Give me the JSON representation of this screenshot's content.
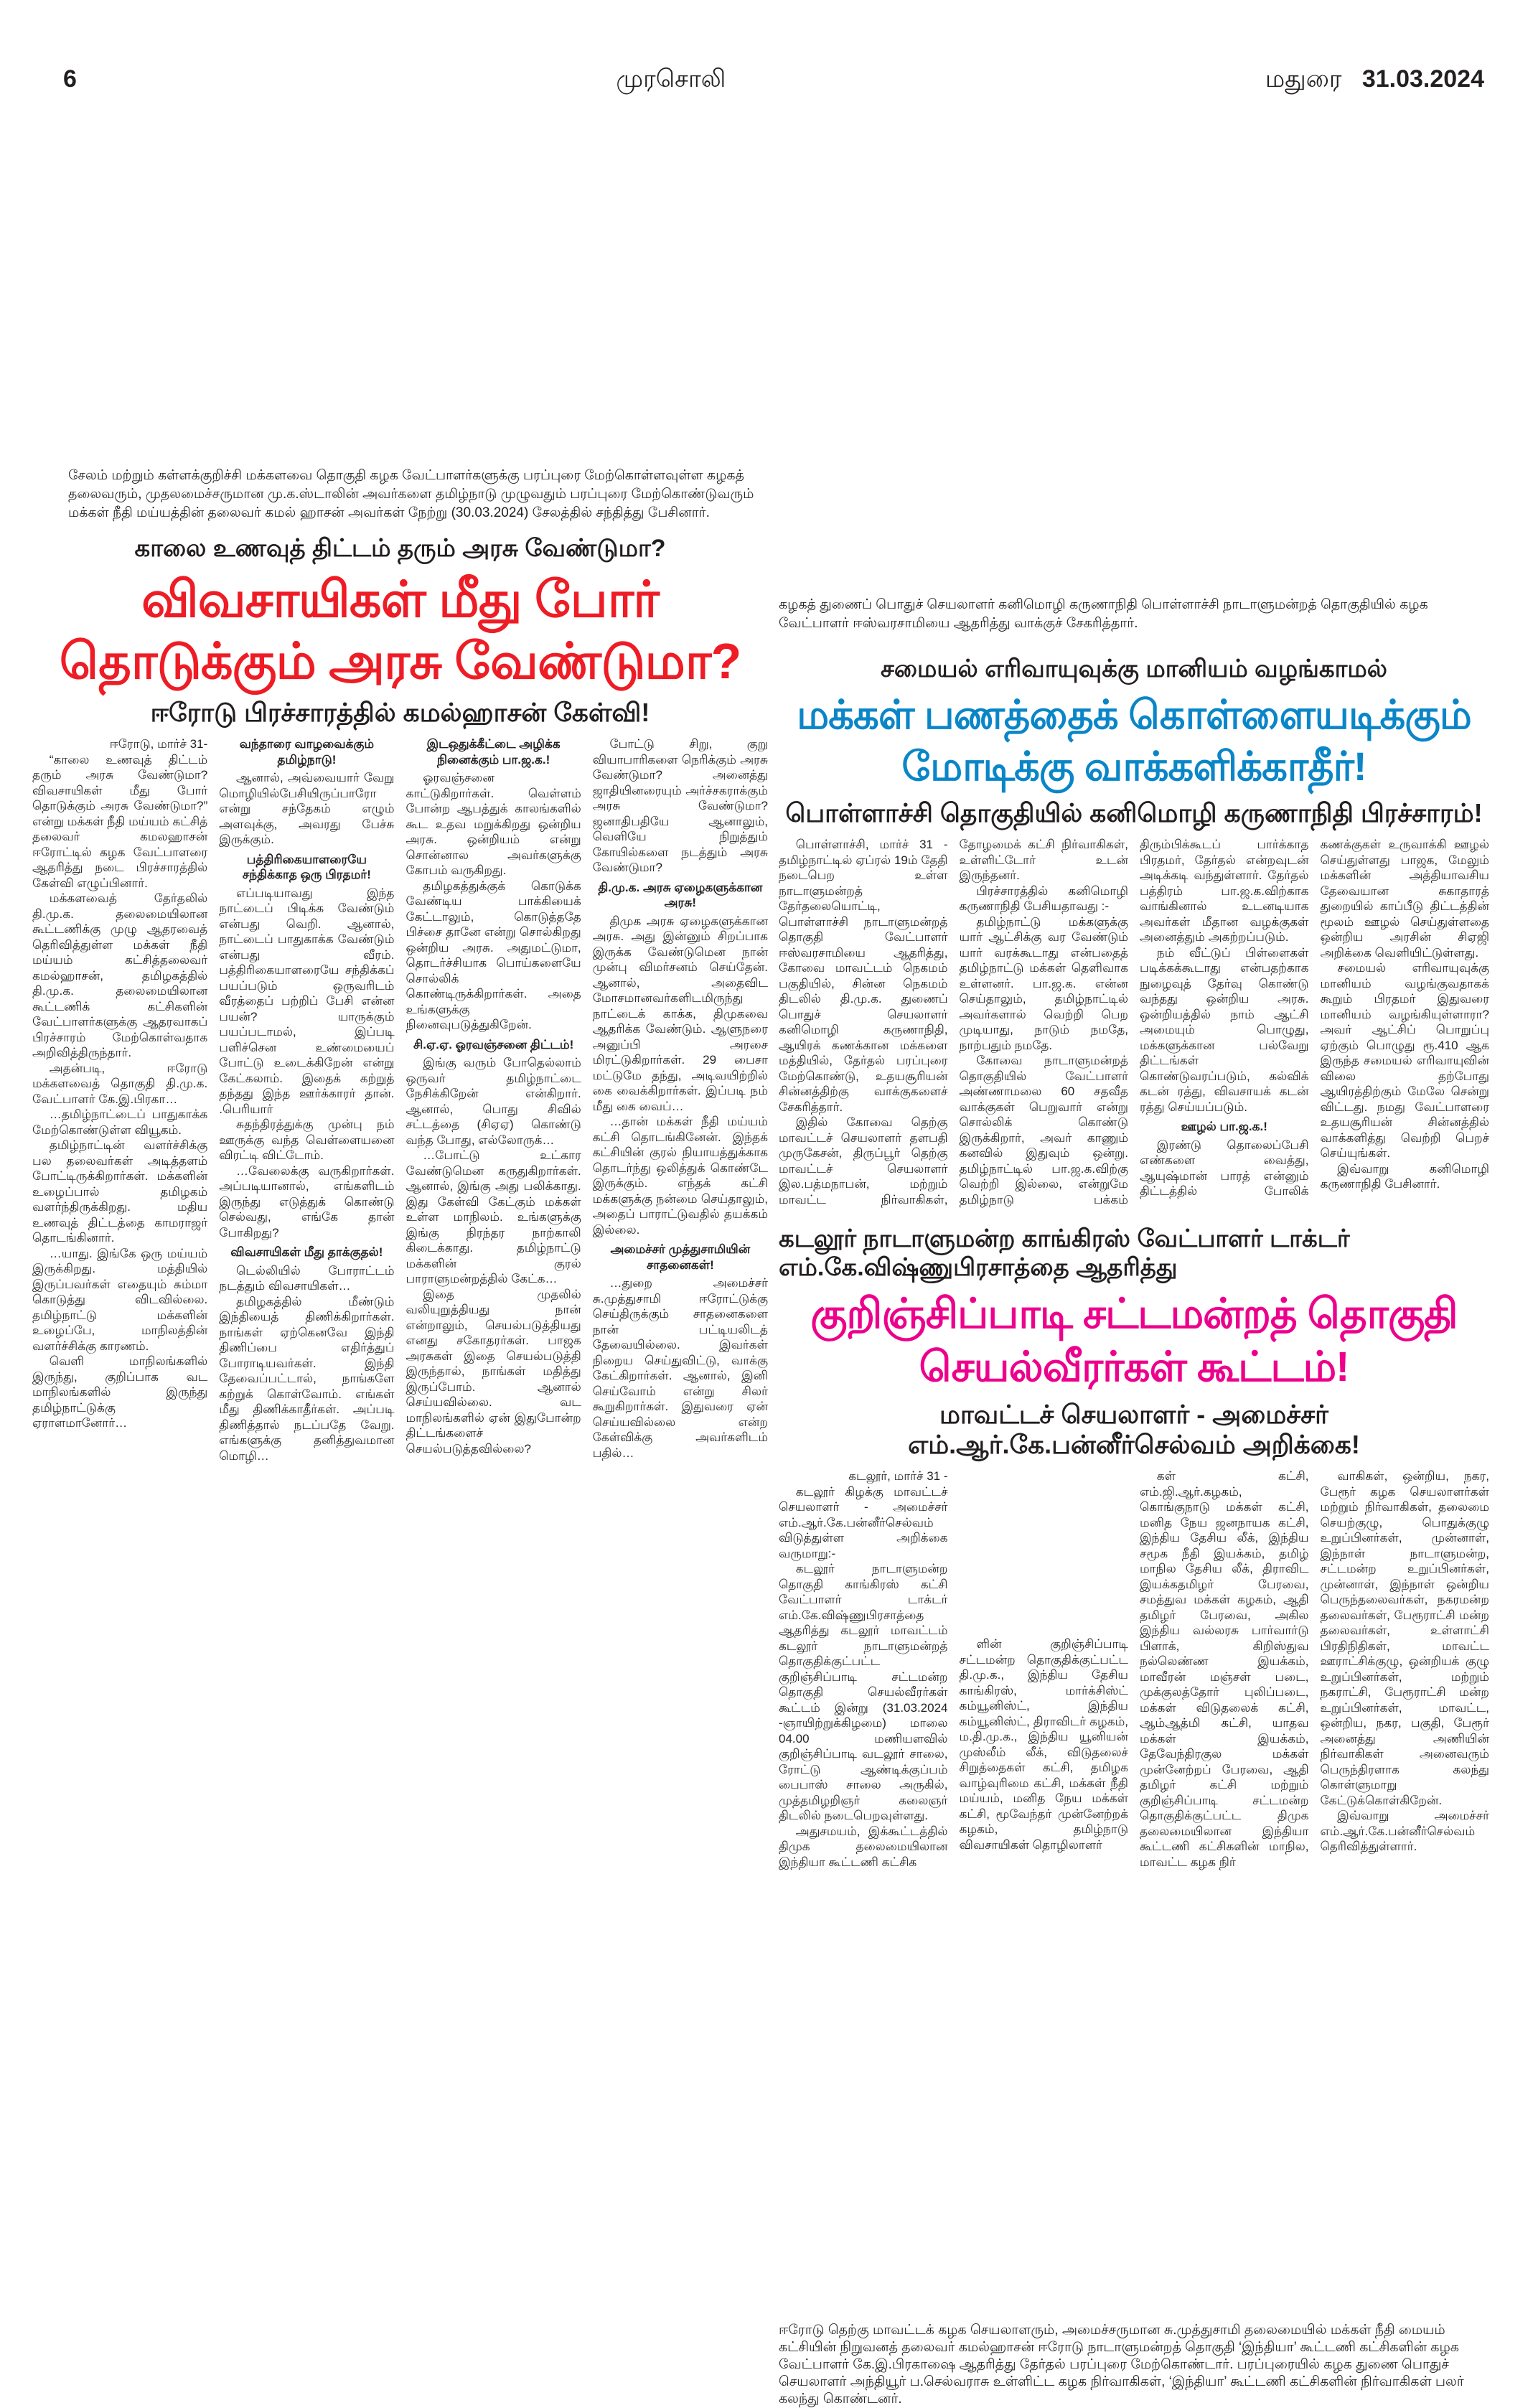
{
  "header": {
    "page_number": "6",
    "masthead": "முரசொலி",
    "edition": "மதுரை",
    "date": "31.03.2024"
  },
  "colors": {
    "red_headline": "#ee1c25",
    "blue_headline": "#0a86c8",
    "pink_headline": "#ec008c",
    "text": "#231f20"
  },
  "left_photo_caption": "சேலம் மற்றும் கள்ளக்குறிச்சி மக்களவை தொகுதி கழக வேட்பாளர்களுக்கு பரப்புரை மேற்கொள்ளவுள்ள கழகத் தலைவரும், முதலமைச்சருமான மு.க.ஸ்டாலின் அவர்களை தமிழ்நாடு முழுவதும் பரப்புரை மேற்கொண்டுவரும் மக்கள் நீதி மய்யத்தின் தலைவர் கமல் ஹாசன் அவர்கள் நேற்று (30.03.2024) சேலத்தில் சந்தித்து பேசினார்.",
  "kamal_article": {
    "kicker": "காலை உணவுத் திட்டம் தரும் அரசு வேண்டுமா?",
    "headline": "விவசாயிகள் மீது போர் தொடுக்கும் அரசு வேண்டுமா?",
    "subhead": "ஈரோடு பிரச்சாரத்தில் கமல்ஹாசன் கேள்வி!",
    "body": [
      {
        "type": "dateline",
        "text": "ஈரோடு, மார்ச் 31-"
      },
      {
        "type": "p",
        "text": "“காலை உணவுத் திட்டம் தரும் அரசு வேண்டுமா? விவசாயிகள் மீது போர் தொடுக்கும் அரசு வேண்டுமா?” என்று மக்கள் நீதி மய்யம் கட்சித் தலைவர் கமலஹாசன் ஈரோட்டில் கழக வேட்பாளரை ஆதரித்து நடை பிரச்சாரத்தில் கேள்வி எழுப்பினார்."
      },
      {
        "type": "p",
        "text": "மக்களவைத் தேர்தலில் தி.மு.க. தலைமையிலான கூட்டணிக்கு முழு ஆதரவைத் தெரிவித்துள்ள மக்கள் நீதி மய்யம் கட்சித்தலைவர் கமல்ஹாசன், தமிழகத்தில் தி.மு.க. தலைமையிலான கூட்டணிக் கட்சிகளின் வேட்பாளர்களுக்கு ஆதரவாகப் பிரச்சாரம் மேற்கொள்வதாக அறிவித்திருந்தார்."
      },
      {
        "type": "p",
        "text": "அதன்படி, ஈரோடு மக்களவைத் தொகுதி தி.மு.க. வேட்பாளர் கே.இ.பிரகா…"
      },
      {
        "type": "p",
        "text": "…தமிழ்நாட்டைப் பாதுகாக்க மேற்கொண்டுள்ள வியூகம்."
      },
      {
        "type": "p",
        "text": "தமிழ்நாட்டின் வளர்ச்சிக்கு பல தலைவர்கள் அடித்தளம் போட்டிருக்கிறார்கள். மக்களின் உழைப்பால் தமிழகம் வளர்ந்திருக்கிறது. மதிய உணவுத் திட்டத்தை காமராஜர் தொடங்கினார்."
      },
      {
        "type": "p",
        "text": "…யாது. இங்கே ஒரு மய்யம் இருக்கிறது. மத்தியில் இருப்பவர்கள் எதையும் சும்மா கொடுத்து விடவில்லை. தமிழ்நாட்டு மக்களின் உழைப்பே, மாநிலத்தின் வளர்ச்சிக்கு காரணம்."
      },
      {
        "type": "p",
        "text": "வெளி மாநிலங்களில் இருந்து, குறிப்பாக வட மாநிலங்களில் இருந்து தமிழ்நாட்டுக்கு ஏராளமானோர்…"
      },
      {
        "type": "h",
        "text": "வந்தாரை வாழவைக்கும் தமிழ்நாடு!"
      },
      {
        "type": "p",
        "text": "ஆனால், அவ்வையார் வேறு மொழியில்பேசியிருப்பாரோ என்று சந்தேகம் எழும் அளவுக்கு, அவரது பேச்சு இருக்கும்."
      },
      {
        "type": "h",
        "text": "பத்திரிகையாளரையே சந்திக்காத ஒரு பிரதமர்!"
      },
      {
        "type": "p",
        "text": "எப்படியாவது இந்த நாட்டைப் பிடிக்க வேண்டும் என்பது வெறி. ஆனால், நாட்டைப் பாதுகாக்க வேண்டும் என்பது வீரம். பத்திரிகையாளரையே சந்திக்கப் பயப்படும் ஒருவரிடம் வீரத்தைப் பற்றிப் பேசி என்ன பயன்? யாருக்கும் பயப்படாமல், இப்படி பளிச்சென உண்மையைப் போட்டு உடைக்கிறேன் என்று கேட்கலாம். இதைக் கற்றுத் தந்தது இந்த ஊர்க்காரர் தான். .பெரியார்"
      },
      {
        "type": "p",
        "text": "சுதந்திரத்துக்கு முன்பு நம் ஊருக்கு வந்த வெள்ளையனை விரட்டி விட்டோம்."
      },
      {
        "type": "p",
        "text": "…வேலைக்கு வருகிறார்கள். அப்படியானால், எங்களிடம் இருந்து எடுத்துக் கொண்டு செல்வது, எங்கே தான் போகிறது?"
      },
      {
        "type": "h",
        "text": "விவசாயிகள் மீது தாக்குதல்!"
      },
      {
        "type": "p",
        "text": "டெல்லியில் போராட்டம் நடத்தும் விவசாயிகள்…"
      },
      {
        "type": "p",
        "text": "தமிழகத்தில் மீண்டும் இந்தியைத் திணிக்கிறார்கள். நாங்கள் ஏற்கெனவே இந்தி திணிப்பை எதிர்த்துப் போராடியவர்கள். இந்தி தேவைப்பட்டால், நாங்களே கற்றுக் கொள்வோம். எங்கள் மீது திணிக்காதீர்கள். அப்படி திணித்தால் நடப்பதே வேறு. எங்களுக்கு தனித்துவமான மொழி…"
      },
      {
        "type": "h",
        "text": "இடஒதுக்கீட்டை அழிக்க நினைக்கும் பா.ஜ.க.!"
      },
      {
        "type": "p",
        "text": "ஓரவஞ்சனை காட்டுகிறார்கள். வெள்ளம் போன்ற ஆபத்துக் காலங்களில் கூட உதவ மறுக்கிறது ஒன்றிய அரசு. ஒன்றியம் என்று சொன்னால அவர்களுக்கு கோபம் வருகிறது."
      },
      {
        "type": "p",
        "text": "தமிழகத்துக்குக் கொடுக்க வேண்டிய பாக்கியைக் கேட்டாலும், கொடுத்ததே பிச்சை தானே என்று சொல்கிறது ஒன்றிய அரசு. அதுமட்டுமா, தொடர்ச்சியாக பொய்களையே சொல்லிக் கொண்டிருக்கிறார்கள். அதை உங்களுக்கு நினைவுபடுத்துகிறேன்."
      },
      {
        "type": "h",
        "text": "சி.ஏ.ஏ. ஓரவஞ்சனை திட்டம்!"
      },
      {
        "type": "p",
        "text": "இங்கு வரும் போதெல்லாம் ஒருவர் தமிழ்நாட்டை நேசிக்கிறேன் என்கிறார். ஆனால், பொது சிவில் சட்டத்தை (சிஏஏ) கொண்டு வந்த போது, எல்லோருக்…"
      },
      {
        "type": "p",
        "text": "…போட்டு உட்கார வேண்டுமென கருதுகிறார்கள். ஆனால், இங்கு அது பலிக்காது. இது கேள்வி கேட்கும் மக்கள் உள்ள மாநிலம். உங்களுக்கு இங்கு நிரந்தர நாற்காலி கிடைக்காது. தமிழ்நாட்டு மக்களின் குரல் பாராளுமன்றத்தில் கேட்க…"
      },
      {
        "type": "p",
        "text": "இதை முதலில் வலியுறுத்தியது நான் என்றாலும், செயல்படுத்தியது எனது சகோதரர்கள். பாஜக அரசுகள் இதை செயல்படுத்தி இருந்தால், நாங்கள் மதித்து இருப்போம். ஆனால் செய்யவில்லை. வட மாநிலங்களில் ஏன் இதுபோன்ற திட்டங்களைச் செயல்படுத்தவில்லை?"
      },
      {
        "type": "p",
        "text": "போட்டு சிறு, குறு வியாபாரிகளை நெரிக்கும் அரசு வேண்டுமா? அனைத்து ஜாதியினரையும் அர்ச்சகராக்கும் அரசு வேண்டுமா? ஜனாதிபதியே ஆனாலும், வெளியே நிறுத்தும் கோயில்களை நடத்தும் அரசு வேண்டுமா?"
      },
      {
        "type": "h",
        "text": "தி.மு.க. அரசு ஏழைகளுக்கான அரசு!"
      },
      {
        "type": "p",
        "text": "திமுக அரசு ஏழைகளுக்கான அரசு. அது இன்னும் சிறப்பாக இருக்க வேண்டுமென நான் முன்பு விமர்சனம் செய்தேன். ஆனால், அதைவிட மோசமானவர்களிடமிருந்து நாட்டைக் காக்க, திமுகவை ஆதரிக்க வேண்டும். ஆளுநரை அனுப்பி அரசை மிரட்டுகிறார்கள். 29 பைசா மட்டுமே தந்து, அடிவயிற்றில் கை வைக்கிறார்கள். இப்படி நம் மீது கை வைப்…"
      },
      {
        "type": "p",
        "text": "…தான் மக்கள் நீதி மய்யம் கட்சி தொடங்கினேன். இந்தக் கட்சியின் குரல் நியாயத்துக்காக தொடர்ந்து ஒலித்துக் கொண்டே இருக்கும். எந்தக் கட்சி மக்களுக்கு நன்மை செய்தாலும், அதைப் பாராட்டுவதில் தயக்கம் இல்லை."
      },
      {
        "type": "h",
        "text": "அமைச்சர் முத்துசாமியின் சாதனைகள்!"
      },
      {
        "type": "p",
        "text": "…துறை அமைச்சர் சு.முத்துசாமி ஈரோட்டுக்கு செய்திருக்கும் சாதனைகளை நான் பட்டியலிடத் தேவையில்லை. இவர்கள் நிறைய செய்துவிட்டு, வாக்கு கேட்கிறார்கள். ஆனால், இனி செய்வோம் என்று சிலர் கூறுகிறார்கள். இதுவரை ஏன் செய்யவில்லை என்ற கேள்விக்கு அவர்களிடம் பதில்…"
      }
    ]
  },
  "right_photo_caption": "கழகத் துணைப் பொதுச் செயலாளர் கனிமொழி கருணாநிதி பொள்ளாச்சி நாடாளுமன்றத் தொகுதியில் கழக வேட்பாளர் ஈஸ்வரசாமியை ஆதரித்து வாக்குச் சேகரித்தார்.",
  "kanimozhi_article": {
    "kicker": "சமையல் எரிவாயுவுக்கு மானியம் வழங்காமல்",
    "headline": "மக்கள் பணத்தைக் கொள்ளையடிக்கும் மோடிக்கு வாக்களிக்காதீர்!",
    "subhead": "பொள்ளாச்சி தொகுதியில் கனிமொழி கருணாநிதி பிரச்சாரம்!",
    "body": [
      {
        "type": "p",
        "text": "பொள்ளாச்சி, மார்ச் 31 - தமிழ்நாட்டில் ஏப்ரல் 19ம் தேதி நடைபெற உள்ள நாடாளுமன்றத் தேர்தலையொட்டி, பொள்ளாச்சி நாடாளுமன்றத் தொகுதி வேட்பாளர் ஈஸ்வரசாமியை ஆதரித்து, கோவை மாவட்டம் நெகமம் பகுதியில், சின்ன நெகமம் திடலில் தி.மு.க. துணைப் பொதுச் செயலாளர் கனிமொழி கருணாநிதி, ஆயிரக் கணக்கான மக்களை மத்தியில், தேர்தல் பரப்புரை மேற்கொண்டு, உதயசூரியன் சின்னத்திற்கு வாக்குகளைச் சேகரித்தார்."
      },
      {
        "type": "p",
        "text": "இதில் கோவை தெற்கு மாவட்டச் செயலாளர் தளபதி முருகேசன், திருப்பூர் தெற்கு மாவட்டச் செயலாளர் இல.பத்மநாபன், மற்றும் மாவட்ட நிர்வாகிகள், தோழமைக் கட்சி நிர்வாகிகள், உள்ளிட்டோர் உடன் இருந்தனர்."
      },
      {
        "type": "p",
        "text": "பிரச்சாரத்தில் கனிமொழி கருணாநிதி பேசியதாவது :-"
      },
      {
        "type": "p",
        "text": "தமிழ்நாட்டு மக்களுக்கு யார் ஆட்சிக்கு வர வேண்டும் யார் வரக்கூடாது என்பதைத் தமிழ்நாட்டு மக்கள் தெளிவாக உள்ளனர். பா.ஜ.க. என்ன செய்தாலும், தமிழ்நாட்டில் அவர்களால் வெற்றி பெற முடியாது, நாடும் நமதே, நாற்பதும் நமதே."
      },
      {
        "type": "p",
        "text": "கோவை நாடாளுமன்றத் தொகுதியில் வேட்பாளர் அண்ணாமலை 60 சதவீத வாக்குகள் பெறுவார் என்று சொல்லிக் கொண்டு இருக்கிறார், அவர் காணும் கனவில் இதுவும் ஒன்று. தமிழ்நாட்டில் பா.ஜ.க.விற்கு வெற்றி இல்லை, என்றுமே தமிழ்நாடு பக்கம் திரும்பிக்கூடப் பார்க்காத பிரதமர், தேர்தல் என்றவுடன் அடிக்கடி வந்துள்ளார். தேர்தல் பத்திரம் பா.ஜ.க.விற்காக வாங்கினால் உடனடியாக அவர்கள் மீதான வழக்குகள் அனைத்தும் அகற்றப்படும்."
      },
      {
        "type": "p",
        "text": "நம் வீட்டுப் பிள்ளைகள் படிக்கக்கூடாது என்பதற்காக நுழைவுத் தேர்வு கொண்டு வந்தது ஒன்றிய அரசு. ஒன்றியத்தில் நாம் ஆட்சி அமையும் பொழுது, மக்களுக்கான பல்வேறு திட்டங்கள் கொண்டுவரப்படும், கல்விக் கடன் ரத்து, விவசாயக் கடன் ரத்து செய்யப்படும்."
      },
      {
        "type": "h",
        "text": "ஊழல் பா.ஜ.க.!"
      },
      {
        "type": "p",
        "text": "இரண்டு தொலைப்பேசி எண்களை வைத்து, ஆயுஷ்மான் பாரத் என்னும் திட்டத்தில் போலிக் கணக்குகள் உருவாக்கி ஊழல் செய்துள்ளது பாஜக, மேலும் மக்களின் அத்தியாவசிய தேவையான சுகாதாரத் துறையில் காப்பீடு திட்டத்தின் மூலம் ஊழல் செய்துள்ளதை ஒன்றிய அரசின் சிஏஜி அறிக்கை வெளியிட்டுள்ளது."
      },
      {
        "type": "p",
        "text": "சமையல் எரிவாயுவுக்கு மானியம் வழங்குவதாகக் கூறும் பிரதமர் இதுவரை மானியம் வழங்கியுள்ளாரா? அவர் ஆட்சிப் பொறுப்பு ஏற்கும் பொழுது ரூ.410 ஆக இருந்த சமையல் எரிவாயுவின் விலை தற்போது ஆயிரத்திற்கும் மேலே சென்று விட்டது. நமது வேட்பாளரை உதயசூரியன் சின்னத்தில் வாக்களித்து வெற்றி பெறச் செய்யுங்கள்."
      },
      {
        "type": "p",
        "text": "இவ்வாறு கனிமொழி கருணாநிதி பேசினார்."
      }
    ]
  },
  "cuddalore_article": {
    "kicker": "கடலூர் நாடாளுமன்ற காங்கிரஸ் வேட்பாளர் டாக்டர் எம்.கே.விஷ்ணுபிரசாத்தை ஆதரித்து",
    "headline": "குறிஞ்சிப்பாடி சட்டமன்றத் தொகுதி செயல்வீரர்கள் கூட்டம்!",
    "subhead": "மாவட்டச் செயலாளர் - அமைச்சர் எம்.ஆர்.கே.பன்னீர்செல்வம் அறிக்கை!",
    "col1": [
      {
        "type": "dateline",
        "text": "கடலூர், மார்ச் 31 -"
      },
      {
        "type": "p",
        "text": "கடலூர் கிழக்கு மாவட்டச் செயலாளர் - அமைச்சர் எம்.ஆர்.கே.பன்னீர்செல்வம் விடுத்துள்ள அறிக்கை வருமாறு:-"
      },
      {
        "type": "p",
        "text": "கடலூர் நாடாளுமன்ற தொகுதி காங்கிரஸ் கட்சி வேட்பாளர் டாக்டர் எம்.கே.விஷ்ணுபிரசாத்தை ஆதரித்து கடலூர் மாவட்டம் கடலூர் நாடாளுமன்றத் தொகுதிக்குட்பட்ட குறிஞ்சிப்பாடி சட்டமன்ற தொகுதி செயல்வீரர்கள் கூட்டம் இன்று (31.03.2024 -ஞாயிற்றுக்கிழமை) மாலை 04.00 மணியளவில் குறிஞ்சிப்பாடி வடலூர் சாலை, ரோட்டு ஆண்டிக்குப்பம் பைபாஸ் சாலை அருகில், முத்தமிழறிஞர் கலைஞர் திடலில் நடைபெறவுள்ளது."
      },
      {
        "type": "p",
        "text": "அதுசமயம், இக்கூட்டத்தில் திமுக தலைமையிலான இந்தியா கூட்டணி கட்சிக"
      }
    ],
    "col2": [
      {
        "type": "p",
        "text": "ளின் குறிஞ்சிப்பாடி சட்டமன்ற தொகுதிக்குட்பட்ட தி.மு.க., இந்திய தேசிய காங்கிரஸ், மார்க்சிஸ்ட் கம்யூனிஸ்ட், இந்திய கம்யூனிஸ்ட், திராவிடர் கழகம், ம.தி.மு.க., இந்திய யூனியன் முஸ்லீம் லீக், விடுதலைச் சிறுத்தைகள் கட்சி, தமிழக வாழ்வுரிமை கட்சி, மக்கள் நீதி மய்யம், மனித நேய மக்கள் கட்சி, மூவேந்தர் முன்னேற்றக் கழகம், தமிழ்நாடு விவசாயிகள் தொழிலாளர்"
      }
    ],
    "col3": [
      {
        "type": "p",
        "text": "கள் கட்சி, எம்.ஜி.ஆர்.கழகம், கொங்குநாடு மக்கள் கட்சி, மனித நேய ஜனநாயக கட்சி, இந்திய தேசிய லீக், இந்திய சமூக நீதி இயக்கம், தமிழ் மாநில தேசிய லீக், திராவிட இயக்கதமிழர் பேரவை, சமத்துவ மக்கள் கழகம், ஆதி தமிழர் பேரவை, அகில இந்திய வல்லரசு பார்வார்டு பிளாக், கிறிஸ்துவ நல்லெண்ண இயக்கம், மாவீரன் மஞ்சள் படை, முக்குலத்தோர் புலிப்படை, மக்கள் விடுதலைக் கட்சி, ஆம்ஆத்மி கட்சி, யாதவ மக்கள் இயக்கம், தேவேந்திரகுல மக்கள் முன்னேற்றப் பேரவை, ஆதி தமிழர் கட்சி மற்றும் குறிஞ்சிப்பாடி சட்டமன்ற தொகுதிக்குட்பட்ட திமுக தலைமையிலான இந்தியா கூட்டணி கட்சிகளின் மாநில, மாவட்ட கழக நிர்"
      }
    ],
    "col4": [
      {
        "type": "p",
        "text": "வாகிகள், ஒன்றிய, நகர, பேரூர் கழக செயலாளர்கள் மற்றும் நிர்வாகிகள், தலைமை செயற்குழு, பொதுக்குழு உறுப்பினர்கள், முன்னாள், இந்நாள் நாடாளுமன்ற, சட்டமன்ற உறுப்பினர்கள், முன்னாள், இந்நாள் ஒன்றிய பெருந்தலைவர்கள், நகரமன்ற தலைவர்கள், பேரூராட்சி மன்ற தலைவர்கள், உள்ளாட்சி பிரதிநிதிகள், மாவட்ட ஊராட்சிக்குழு, ஒன்றியக் குழு உறுப்பினர்கள், மற்றும் நகராட்சி, பேரூராட்சி மன்ற உறுப்பினர்கள், மாவட்ட, ஒன்றிய, நகர, பகுதி, பேரூர் அனைத்து அணியின் நிர்வாகிகள் அனைவரும் பெருந்திரளாக கலந்து கொள்ளுமாறு கேட்டுக்கொள்கிறேன்."
      },
      {
        "type": "p",
        "text": "இவ்வாறு அமைச்சர் எம்.ஆர்.கே.பன்னீர்செல்வம் தெரிவித்துள்ளார்."
      }
    ]
  },
  "bottom_photo_caption": "ஈரோடு தெற்கு மாவட்டக் கழக செயலாளரும், அமைச்சருமான சு.முத்துசாமி தலைமையில் மக்கள் நீதி மையம் கட்சியின் நிறுவனத் தலைவர் கமல்ஹாசன் ஈரோடு நாடாளுமன்றத் தொகுதி ‘இந்தியா’ கூட்டணி கட்சிகளின் கழக வேட்பாளர் கே.இ.பிரகாஷை ஆதரித்து தேர்தல் பரப்புரை மேற்கொண்டார். பரப்புரையில் கழக துணை பொதுச் செயலாளர் அந்தியூர் ப.செல்வராசு உள்ளிட்ட கழக நிர்வாகிகள், ‘இந்தியா’ கூட்டணி கட்சிகளின் நிர்வாகிகள் பலர் கலந்து கொண்டனர்."
}
